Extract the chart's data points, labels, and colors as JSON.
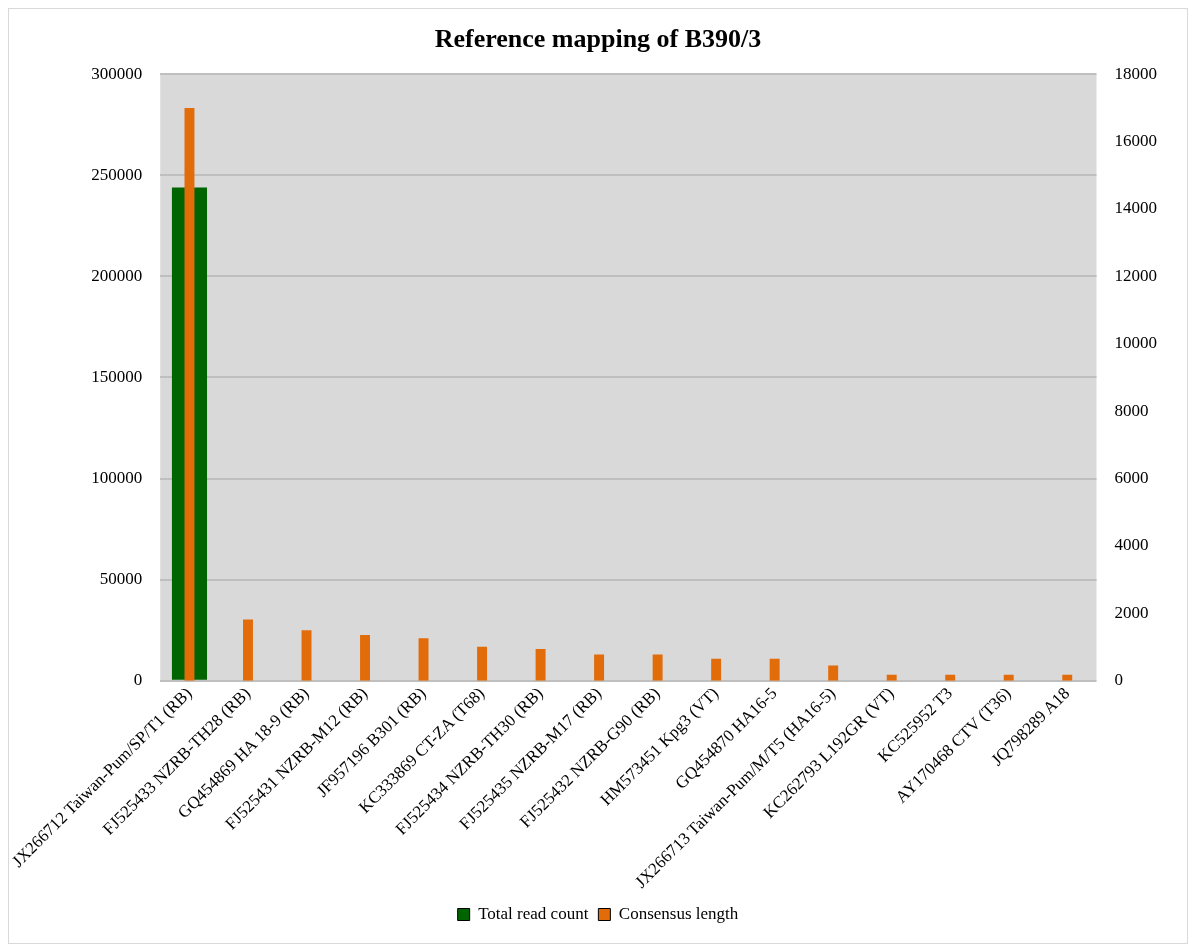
{
  "chart_data": {
    "type": "bar",
    "title": "Reference mapping of B390/3",
    "categories": [
      "JX266712 Taiwan-Pum/SP/T1 (RB)",
      "FJ525433 NZRB-TH28 (RB)",
      "GQ454869 HA 18-9 (RB)",
      "FJ525431 NZRB-M12 (RB)",
      "JF957196 B301 (RB)",
      "KC333869 CT-ZA (T68)",
      "FJ525434 NZRB-TH30 (RB)",
      "FJ525435 NZRB-M17 (RB)",
      "FJ525432 NZRB-G90 (RB)",
      "HM573451 Kpg3 (VT)",
      "GQ454870 HA16-5",
      "JX266713 Taiwan-Pum/M/T5 (HA16-5)",
      "KC262793 L192GR (VT)",
      "KC525952 T3",
      "AY170468 CTV (T36)",
      "JQ798289 A18"
    ],
    "series": [
      {
        "name": "Total read count",
        "color": "#006400",
        "values": [
          244000,
          0,
          0,
          0,
          0,
          0,
          0,
          0,
          0,
          0,
          0,
          0,
          0,
          0,
          0,
          0
        ]
      },
      {
        "name": "Consensus length",
        "color": "#e36c0a",
        "axis": "y2",
        "values": [
          17000,
          1820,
          1500,
          1360,
          1260,
          1010,
          940,
          780,
          780,
          650,
          650,
          450,
          180,
          180,
          180,
          180
        ]
      }
    ],
    "ylim": [
      0,
      300000
    ],
    "yticks": [
      0,
      50000,
      100000,
      150000,
      200000,
      250000,
      300000
    ],
    "y2lim": [
      0,
      18000
    ],
    "y2ticks": [
      0,
      2000,
      4000,
      6000,
      8000,
      10000,
      12000,
      14000,
      16000,
      18000
    ],
    "grid": "y",
    "legend": "bottom"
  }
}
